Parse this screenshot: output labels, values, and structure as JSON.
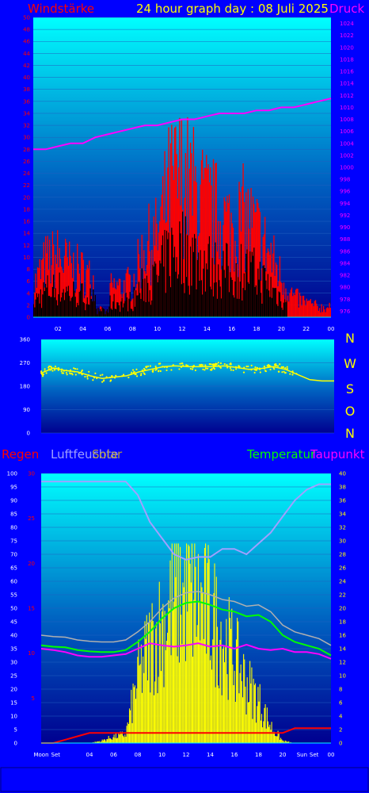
{
  "colors": {
    "background": "#0000ff",
    "plot_top": "#00ffff",
    "plot_bottom": "#0000a0",
    "wind_gust": "#ff0000",
    "wind_avg": "#000000",
    "pressure": "#ff00ff",
    "direction": "#ffff00",
    "rain": "#ff0000",
    "humidity": "#a0a0ff",
    "solar": "#ffff00",
    "temperature": "#00ff00",
    "dewpoint": "#ff00ff"
  },
  "chart_data": [
    {
      "type": "area",
      "title": "24 hour graph day : 08 Juli 2025",
      "ylabel": "Windstärke",
      "y2label": "Druck",
      "ylim": [
        0,
        50
      ],
      "y2lim": [
        975,
        1025
      ],
      "x_ticks": [
        "02",
        "04",
        "06",
        "08",
        "10",
        "12",
        "14",
        "16",
        "18",
        "20",
        "22",
        "00"
      ],
      "grid": true,
      "series": [
        {
          "name": "Windstärke",
          "x": [
            0,
            1,
            2,
            3,
            4,
            5,
            6,
            7,
            8,
            9,
            10,
            11,
            12,
            13,
            14,
            15,
            16,
            17,
            18,
            19,
            20,
            21,
            22,
            23,
            24
          ],
          "values": [
            6,
            11,
            12,
            10,
            9,
            7,
            6,
            6,
            7,
            14,
            16,
            26,
            28,
            25,
            22,
            20,
            18,
            20,
            17,
            13,
            8,
            4,
            3,
            2,
            2
          ]
        },
        {
          "name": "Druck",
          "x": [
            0,
            1,
            2,
            3,
            4,
            5,
            6,
            7,
            8,
            9,
            10,
            11,
            12,
            13,
            14,
            15,
            16,
            17,
            18,
            19,
            20,
            21,
            22,
            23,
            24
          ],
          "values": [
            1003,
            1003,
            1003.5,
            1004,
            1004,
            1005,
            1005.5,
            1006,
            1006.5,
            1007,
            1007,
            1007.5,
            1008,
            1008,
            1008.5,
            1009,
            1009,
            1009,
            1009.5,
            1009.5,
            1010,
            1010,
            1010.5,
            1011,
            1011.5
          ]
        }
      ]
    },
    {
      "type": "scatter",
      "ylabel": "",
      "ylim": [
        0,
        360
      ],
      "y_ticks": [
        "0",
        "90",
        "180",
        "270",
        "360"
      ],
      "direction_labels": [
        "N",
        "W",
        "S",
        "O",
        "N"
      ],
      "series": [
        {
          "name": "",
          "x": [
            0,
            1,
            2,
            3,
            4,
            5,
            6,
            7,
            8,
            9,
            10,
            11,
            12,
            13,
            14,
            15,
            16,
            17,
            18,
            19,
            20,
            21,
            22,
            23,
            24
          ],
          "values": [
            230,
            250,
            240,
            235,
            220,
            210,
            215,
            220,
            235,
            245,
            255,
            258,
            255,
            255,
            255,
            258,
            252,
            245,
            248,
            255,
            245,
            225,
            205,
            200,
            200
          ]
        }
      ]
    },
    {
      "type": "line",
      "legend": [
        "Regen",
        "Luftfeuchte",
        "Solar",
        "Temperatur",
        "Taupunkt"
      ],
      "ylim": [
        0,
        100
      ],
      "y_ticks_left": [
        "0",
        "5",
        "10",
        "15",
        "20",
        "25",
        "30",
        "35",
        "40",
        "45",
        "50",
        "55",
        "60",
        "65",
        "70",
        "75",
        "80",
        "85",
        "90",
        "95",
        "100"
      ],
      "rain_ticks": [
        "5",
        "10",
        "15",
        "20",
        "25",
        "30"
      ],
      "y2lim": [
        0,
        40
      ],
      "x_ticks": [
        "Moon",
        "Set",
        "04",
        "06",
        "08",
        "10",
        "12",
        "14",
        "16",
        "18",
        "20",
        "Sun",
        "Set",
        "00"
      ],
      "series": [
        {
          "name": "Luftfeuchte",
          "x": [
            0,
            1,
            2,
            3,
            4,
            5,
            6,
            7,
            8,
            9,
            10,
            11,
            12,
            13,
            14,
            15,
            16,
            17,
            18,
            19,
            20,
            21,
            22,
            23,
            24
          ],
          "values": [
            97,
            97,
            97,
            97,
            97,
            97,
            97,
            97,
            92,
            82,
            76,
            70,
            68,
            69,
            69,
            72,
            72,
            70,
            74,
            78,
            84,
            90,
            94,
            96,
            96
          ]
        },
        {
          "name": "Solar",
          "x": [
            0,
            1,
            2,
            3,
            4,
            5,
            6,
            7,
            8,
            9,
            10,
            11,
            12,
            13,
            14,
            15,
            16,
            17,
            18,
            19,
            20,
            21,
            22,
            23,
            24
          ],
          "values": [
            0,
            0,
            0,
            0,
            0,
            1,
            3,
            4,
            30,
            45,
            55,
            66,
            70,
            65,
            60,
            50,
            40,
            28,
            20,
            8,
            1,
            0,
            0,
            0,
            0
          ]
        },
        {
          "name": "Temperatur",
          "x": [
            0,
            1,
            2,
            3,
            4,
            5,
            6,
            7,
            8,
            9,
            10,
            11,
            12,
            13,
            14,
            15,
            16,
            17,
            18,
            19,
            20,
            21,
            22,
            23,
            24
          ],
          "values": [
            14.5,
            14.3,
            14.2,
            13.8,
            13.6,
            13.5,
            13.5,
            13.8,
            15,
            16.5,
            18.5,
            20,
            20.8,
            21,
            20.5,
            19.8,
            19.5,
            18.8,
            19,
            18,
            16,
            15,
            14.5,
            14,
            13
          ]
        },
        {
          "name": "Taupunkt",
          "x": [
            0,
            1,
            2,
            3,
            4,
            5,
            6,
            7,
            8,
            9,
            10,
            11,
            12,
            13,
            14,
            15,
            16,
            17,
            18,
            19,
            20,
            21,
            22,
            23,
            24
          ],
          "values": [
            14,
            13.8,
            13.5,
            13,
            12.8,
            12.8,
            13,
            13.2,
            14,
            14.8,
            14.5,
            14.3,
            14.5,
            14.8,
            14.3,
            14.5,
            14,
            14.6,
            14,
            13.8,
            14,
            13.5,
            13.5,
            13.2,
            12.5
          ]
        },
        {
          "name": "Regen",
          "x": [
            0,
            1,
            2,
            3,
            4,
            5,
            6,
            7,
            8,
            9,
            10,
            11,
            12,
            13,
            14,
            15,
            16,
            17,
            18,
            19,
            20,
            21,
            22,
            23,
            24
          ],
          "values": [
            0,
            0,
            0.5,
            1,
            1.5,
            1.5,
            1.5,
            1.5,
            1.5,
            1.5,
            1.5,
            1.5,
            1.5,
            1.5,
            1.5,
            1.5,
            1.5,
            1.5,
            1.5,
            1.5,
            1.5,
            2.2,
            2.2,
            2.2,
            2.2
          ]
        }
      ]
    }
  ],
  "labels": {
    "title": "24 hour graph day : 08 Juli 2025",
    "wind_label": "Windstärke",
    "pressure_label": "Druck",
    "rain_label": "Regen",
    "humidity_label": "Luftfeuchte",
    "solar_label": "Solar",
    "temp_label": "Temperatur",
    "dew_label": "Taupunkt"
  }
}
